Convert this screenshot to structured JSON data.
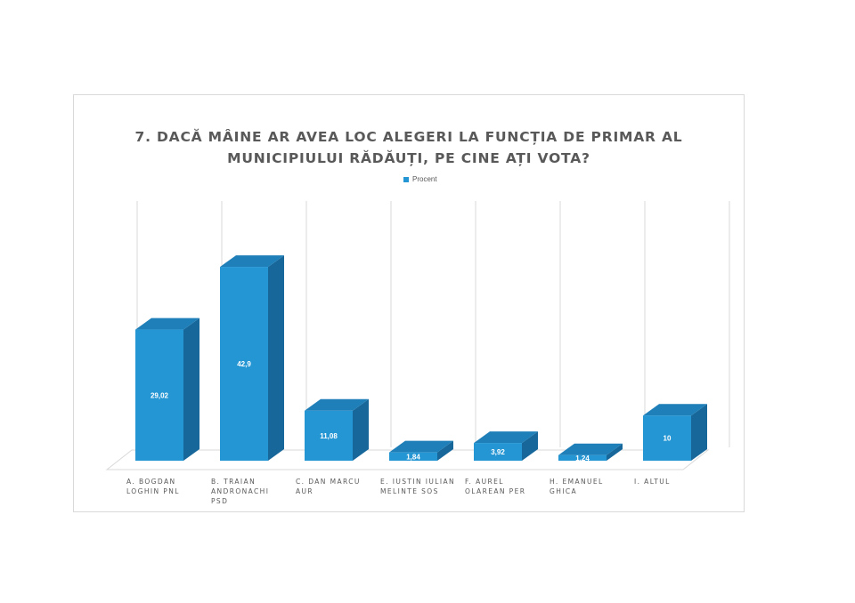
{
  "chart_data": {
    "type": "bar",
    "title_line1": "7. DACĂ MÂINE AR AVEA LOC ALEGERI LA FUNCȚIA DE PRIMAR AL",
    "title_line2": "MUNICIPIULUI RĂDĂUȚI, PE CINE AȚI VOTA?",
    "categories": [
      [
        "A. BOGDAN",
        "LOGHIN PNL"
      ],
      [
        "B. TRAIAN",
        "ANDRONACHI",
        "PSD"
      ],
      [
        "C. DAN MARCU",
        "AUR"
      ],
      [
        "E. IUSTIN IULIAN",
        "MELINTE SOS"
      ],
      [
        "F. AUREL",
        "OLAREAN PER"
      ],
      [
        "H. EMANUEL",
        "GHICA"
      ],
      [
        "I. ALTUL"
      ]
    ],
    "series": [
      {
        "name": "Procent",
        "values": [
          29.02,
          42.9,
          11.08,
          1.84,
          3.92,
          1.24,
          10
        ],
        "labels": [
          "29,02",
          "42,9",
          "11,08",
          "1,84",
          "3,92",
          "1,24",
          "10"
        ]
      }
    ],
    "ylim": [
      0,
      50
    ],
    "grid": true,
    "legend_position": "top-center",
    "colors": {
      "front": "#2596d4",
      "side": "#17679a",
      "top": "#1f7fb8",
      "grid": "#d9d9d9",
      "text": "#595959"
    }
  }
}
